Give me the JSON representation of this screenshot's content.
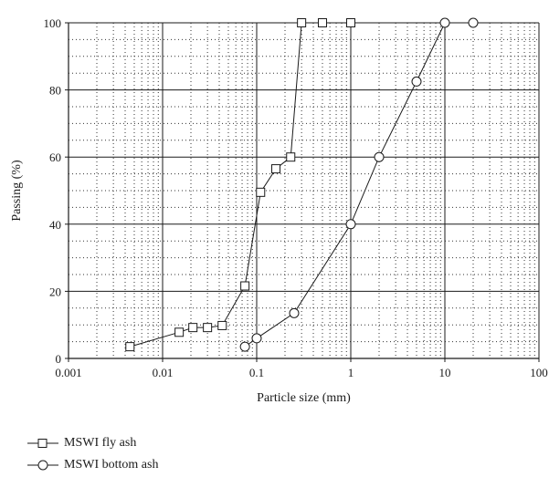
{
  "chart_data": {
    "type": "scatter",
    "xscale": "log",
    "xlabel": "Particle size (mm)",
    "ylabel": "Passing (%)",
    "xlim": [
      0.001,
      100
    ],
    "ylim": [
      0,
      100
    ],
    "xticks": [
      0.001,
      0.01,
      0.1,
      1,
      10,
      100
    ],
    "xtick_labels": [
      "0.001",
      "0.01",
      "0.1",
      "1",
      "10",
      "100"
    ],
    "yticks": [
      0,
      20,
      40,
      60,
      80,
      100
    ],
    "ytick_labels": [
      "0",
      "20",
      "40",
      "60",
      "80",
      "100"
    ],
    "grid": true,
    "legend_position": "below-left",
    "series": [
      {
        "name": "MSWI fly ash",
        "marker": "square",
        "x": [
          0.0045,
          0.015,
          0.021,
          0.03,
          0.043,
          0.075,
          0.11,
          0.16,
          0.23,
          0.3,
          0.5,
          1.0
        ],
        "y": [
          3.5,
          7.8,
          9.2,
          9.2,
          9.8,
          21.6,
          49.5,
          56.5,
          60,
          100,
          100,
          100
        ]
      },
      {
        "name": "MSWI bottom ash",
        "marker": "circle",
        "x": [
          0.075,
          0.1,
          0.25,
          1.0,
          2.0,
          5.0,
          10.0,
          20.0
        ],
        "y": [
          3.5,
          6,
          13.5,
          40,
          60,
          82.5,
          100,
          100
        ]
      }
    ]
  },
  "legend": {
    "items": [
      {
        "label": "MSWI fly ash",
        "icon": "square-marker-icon"
      },
      {
        "label": "MSWI bottom ash",
        "icon": "circle-marker-icon"
      }
    ]
  }
}
